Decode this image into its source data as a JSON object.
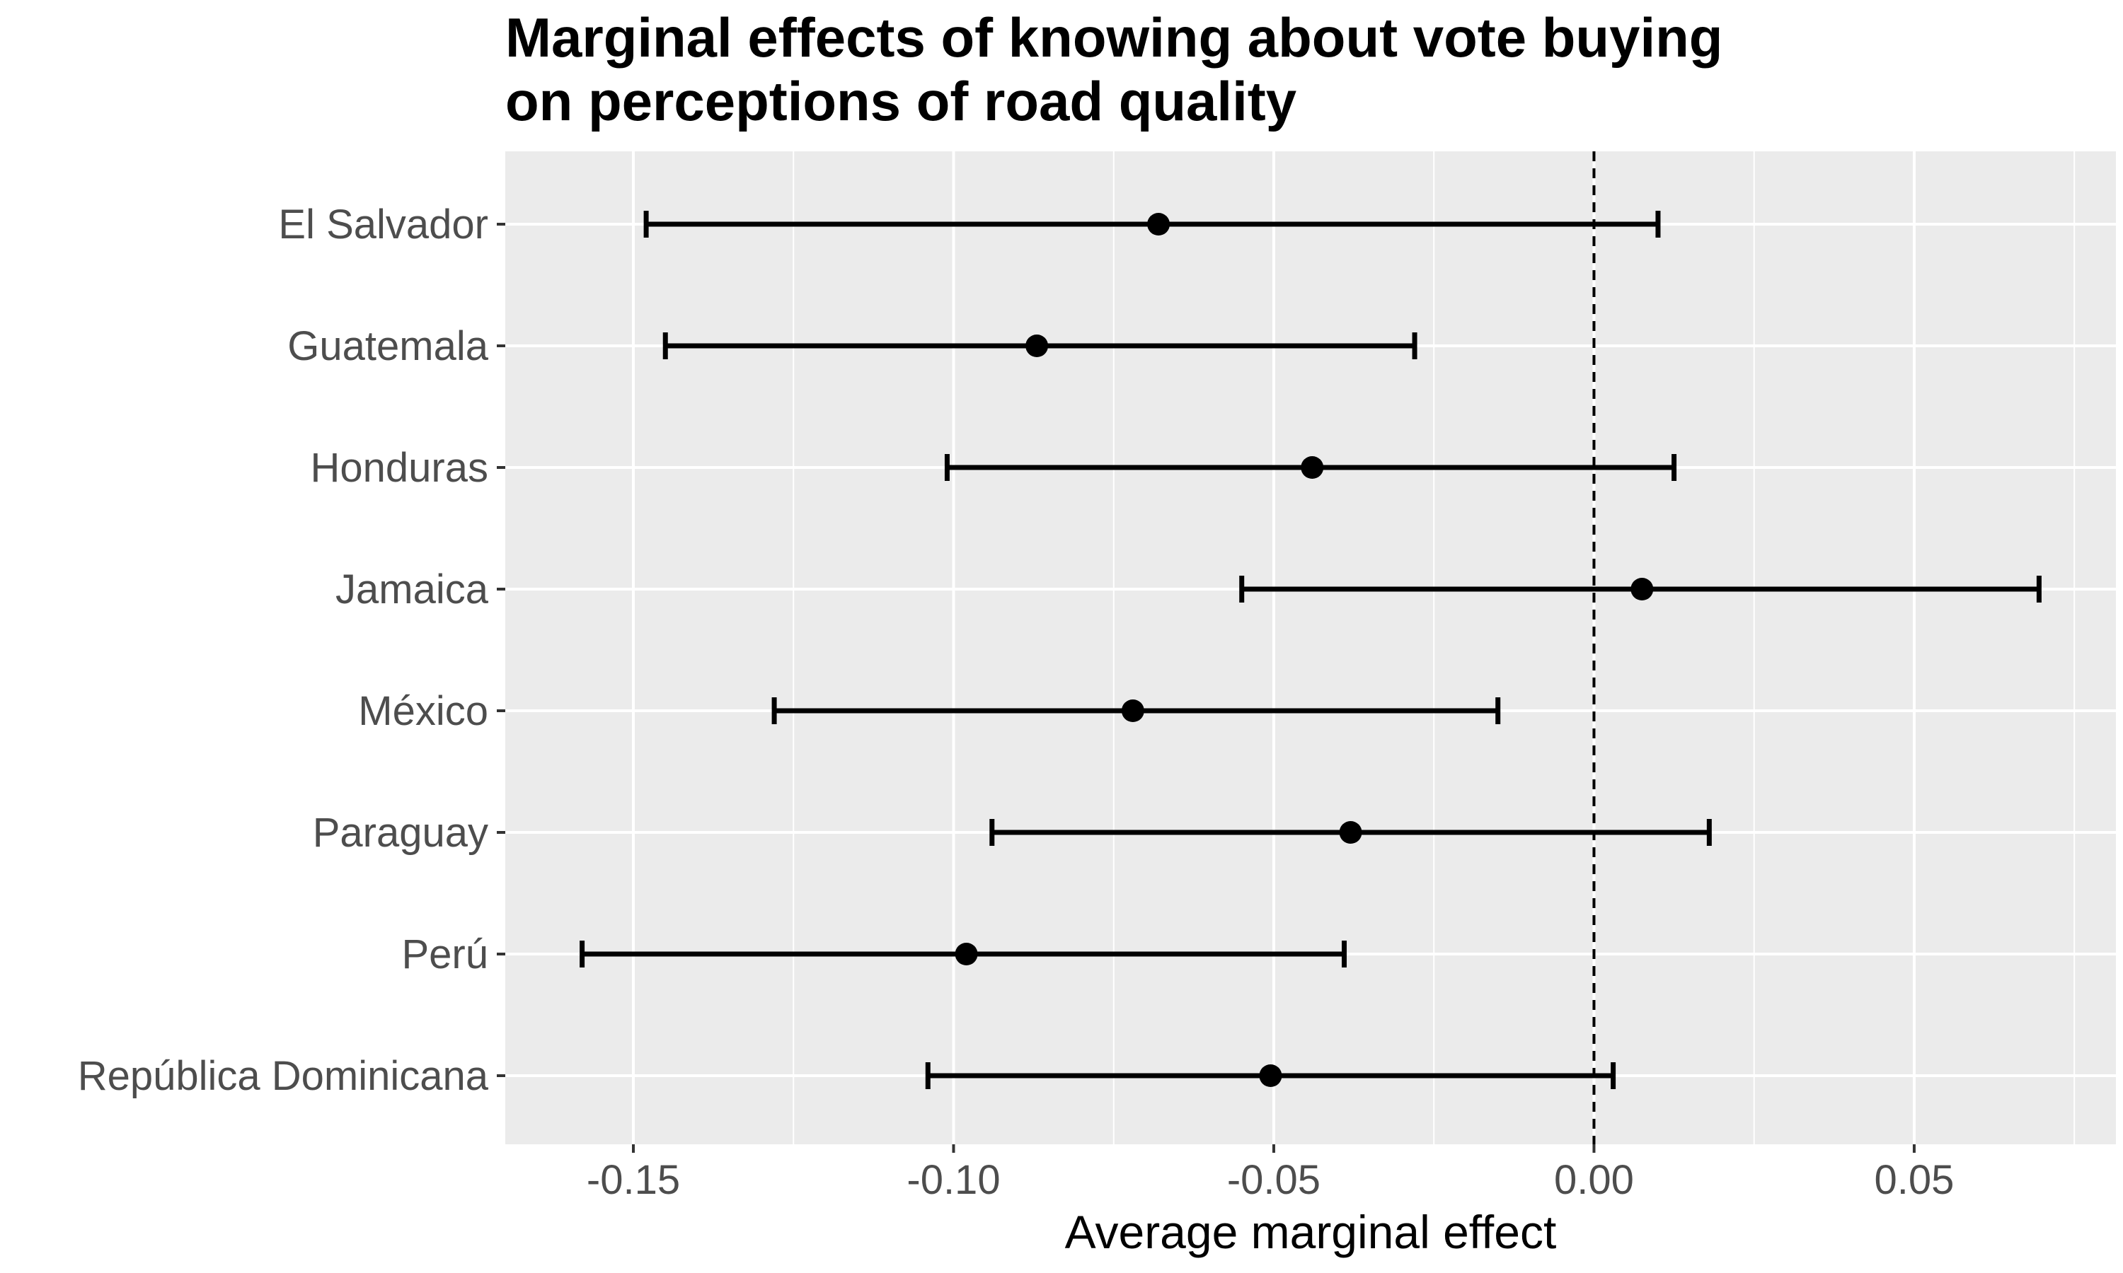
{
  "chart_data": {
    "type": "scatter",
    "subtype": "point-with-error-bars",
    "title_lines": [
      "Marginal effects of knowing about vote buying",
      "on perceptions of road quality"
    ],
    "xlabel": "Average marginal effect",
    "ylabel": "",
    "xlim": [
      -0.17,
      0.0815
    ],
    "x_ticks": [
      -0.15,
      -0.1,
      -0.05,
      0.0,
      0.05
    ],
    "x_tick_labels": [
      "-0.15",
      "-0.10",
      "-0.05",
      "0.00",
      "0.05"
    ],
    "reference_line": {
      "x": 0.0,
      "style": "dashed"
    },
    "grid": true,
    "panel_background": "#ebebeb",
    "grid_color": "#ffffff",
    "mark_color": "#000000",
    "categories": [
      "El Salvador",
      "Guatemala",
      "Honduras",
      "Jamaica",
      "México",
      "Paraguay",
      "Perú",
      "República Dominicana"
    ],
    "estimates": [
      -0.068,
      -0.087,
      -0.044,
      0.0075,
      -0.072,
      -0.038,
      -0.098,
      -0.0505
    ],
    "lower": [
      -0.148,
      -0.145,
      -0.101,
      -0.055,
      -0.128,
      -0.094,
      -0.158,
      -0.104
    ],
    "upper": [
      0.01,
      -0.028,
      0.0125,
      0.0695,
      -0.015,
      0.018,
      -0.039,
      0.003
    ]
  }
}
